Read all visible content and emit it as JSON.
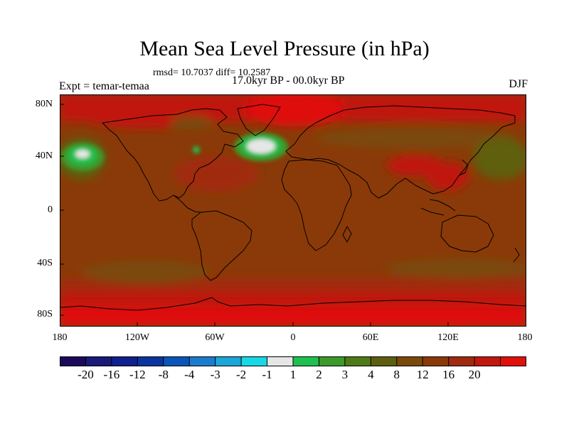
{
  "title": "Mean Sea Level Pressure (in hPa)",
  "stats": "rmsd= 10.7037 diff= 10.2587",
  "expt": "Expt = temar-temaa",
  "period": "17.0kyr BP - 00.0kyr BP",
  "season": "DJF",
  "lat_ticks": [
    "80N",
    "40N",
    "0",
    "40S",
    "80S"
  ],
  "lon_ticks": [
    "180",
    "120W",
    "60W",
    "0",
    "60E",
    "120E",
    "180"
  ],
  "colorbar": {
    "colors": [
      "#1b0a5c",
      "#1a1a7a",
      "#10208e",
      "#0a35a0",
      "#0a55b8",
      "#1a7ccc",
      "#1aa6d8",
      "#17d8e6",
      "#e6e6e6",
      "#1ec050",
      "#3c9a2a",
      "#4e7a18",
      "#5e5e10",
      "#7a4a0a",
      "#8a3a08",
      "#a02a10",
      "#c0180e",
      "#e0100a"
    ],
    "labels": [
      "-20",
      "-16",
      "-12",
      "-8",
      "-4",
      "-3",
      "-2",
      "-1",
      "1",
      "2",
      "3",
      "4",
      "8",
      "12",
      "16",
      "20"
    ]
  }
}
